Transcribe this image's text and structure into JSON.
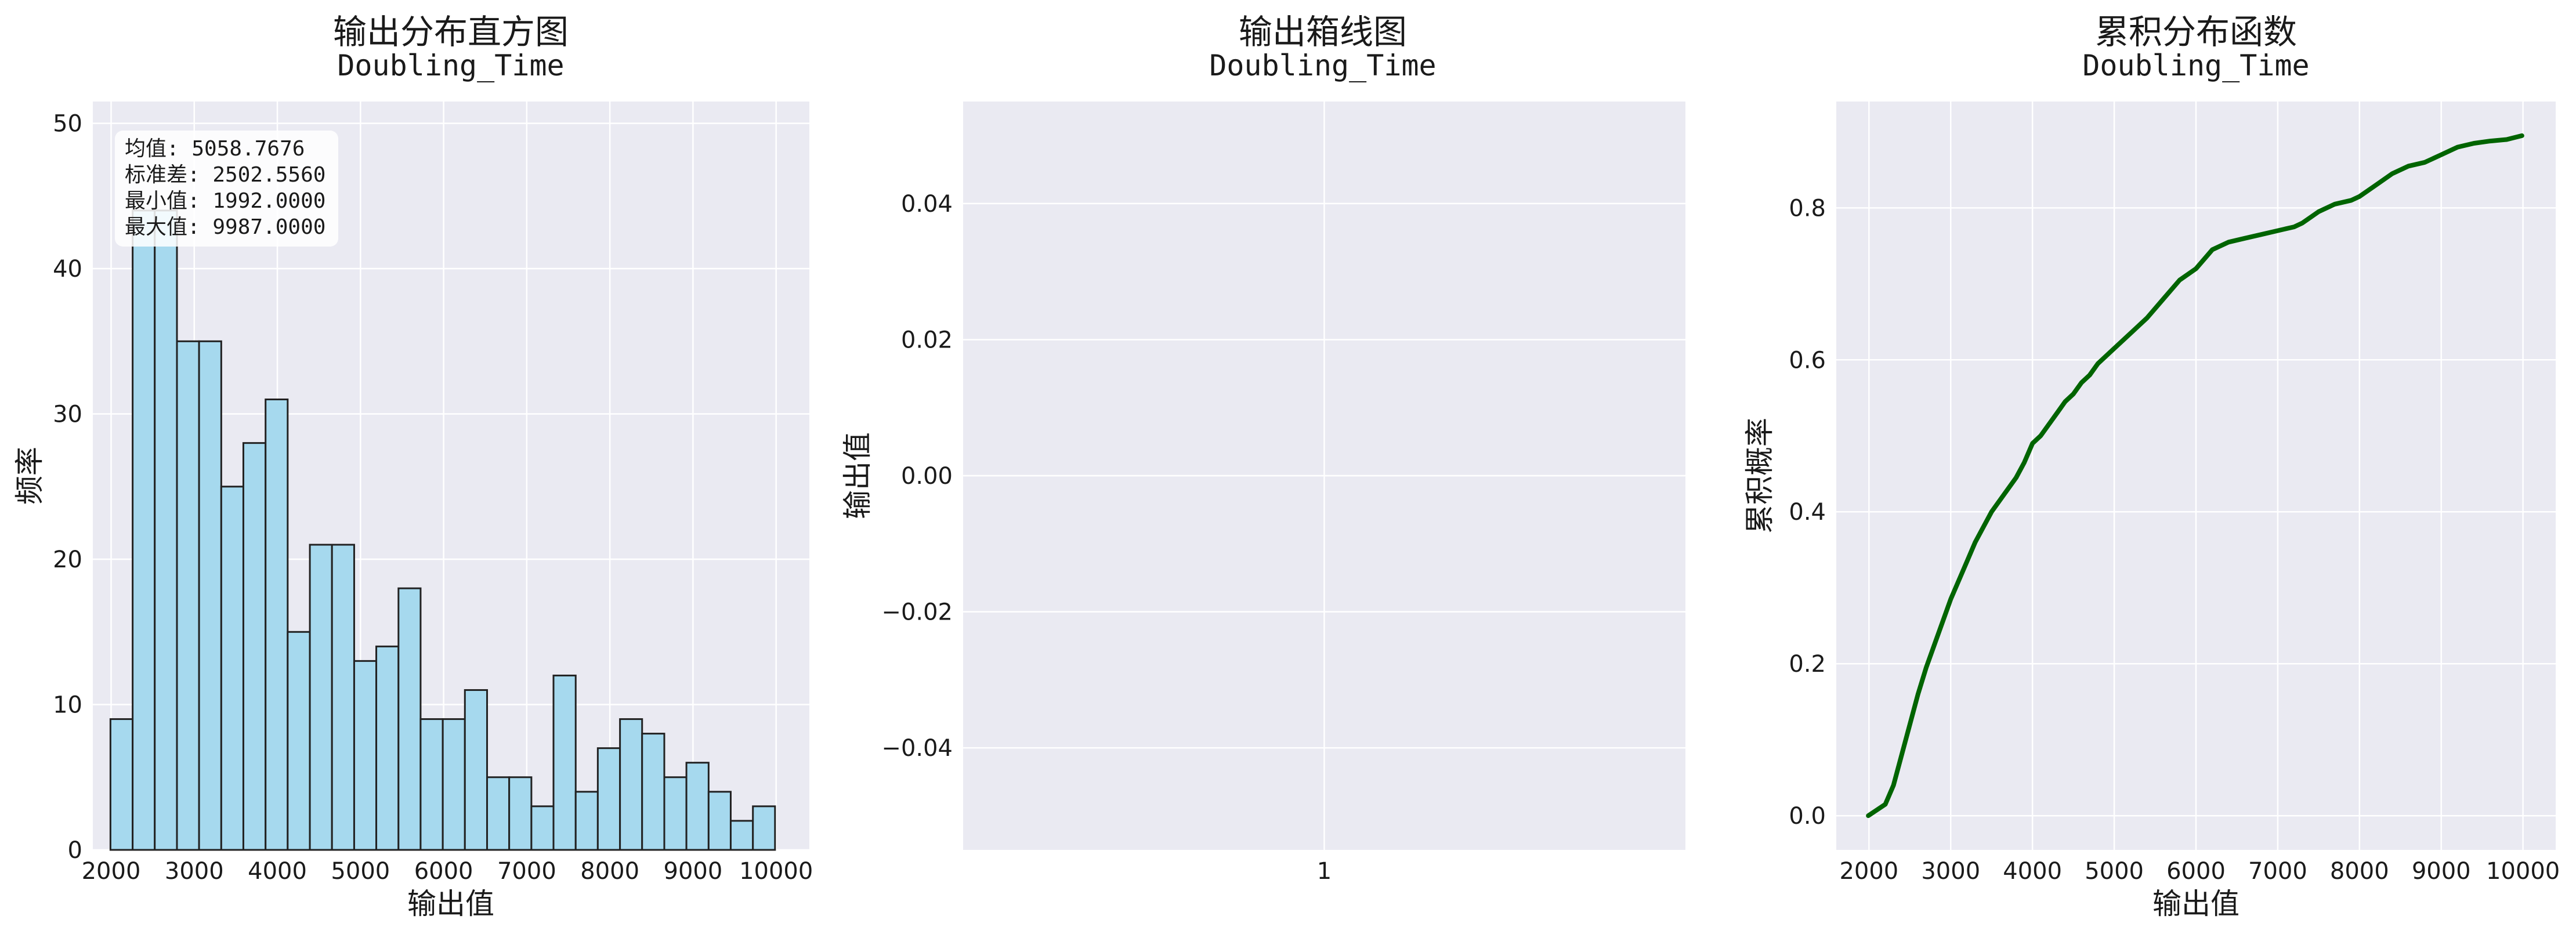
{
  "chart_data": [
    {
      "type": "bar",
      "title": "输出分布直方图",
      "subtitle": "Doubling_Time",
      "xlabel": "输出值",
      "ylabel": "频率",
      "xlim": [
        1780,
        10400
      ],
      "ylim": [
        0,
        51.5
      ],
      "xticks": [
        2000,
        3000,
        4000,
        5000,
        6000,
        7000,
        8000,
        9000,
        10000
      ],
      "yticks": [
        0,
        10,
        20,
        30,
        40,
        50
      ],
      "grid": true,
      "bin_edges": [
        1992,
        2259,
        2525,
        2792,
        3058,
        3325,
        3591,
        3858,
        4124,
        4391,
        4657,
        4924,
        5190,
        5457,
        5723,
        5990,
        6256,
        6523,
        6789,
        7056,
        7322,
        7589,
        7855,
        8122,
        8388,
        8655,
        8921,
        9188,
        9454,
        9721,
        9987
      ],
      "values": [
        9,
        44,
        44,
        35,
        35,
        25,
        28,
        31,
        15,
        21,
        21,
        13,
        14,
        18,
        9,
        9,
        11,
        5,
        5,
        3,
        12,
        4,
        7,
        9,
        8,
        5,
        6,
        4,
        2,
        3
      ],
      "stats": [
        "均值: 5058.7676",
        "标准差: 2502.5560",
        "最小值: 1992.0000",
        "最大值: 9987.0000"
      ],
      "bar_color": "#a6d9ee"
    },
    {
      "type": "box",
      "title": "输出箱线图",
      "subtitle": "Doubling_Time",
      "xlabel": "",
      "ylabel": "输出值",
      "ylim": [
        -0.055,
        0.055
      ],
      "yticks": [
        0.04,
        0.02,
        0.0,
        -0.02,
        -0.04
      ],
      "ytick_labels": [
        "0.04",
        "0.02",
        "0.00",
        "−0.02",
        "−0.04"
      ],
      "xticks": [
        "1"
      ],
      "grid": true
    },
    {
      "type": "line",
      "title": "累积分布函数",
      "subtitle": "Doubling_Time",
      "xlabel": "输出值",
      "ylabel": "累积概率",
      "xlim": [
        1600,
        10400
      ],
      "ylim": [
        -0.045,
        0.94
      ],
      "xticks": [
        2000,
        3000,
        4000,
        5000,
        6000,
        7000,
        8000,
        9000,
        10000
      ],
      "yticks": [
        0.0,
        0.2,
        0.4,
        0.6,
        0.8
      ],
      "ytick_labels": [
        "0.0",
        "0.2",
        "0.4",
        "0.6",
        "0.8"
      ],
      "grid": true,
      "line_color": "#006400",
      "x": [
        1992,
        2200,
        2300,
        2400,
        2500,
        2600,
        2700,
        2800,
        2900,
        3000,
        3100,
        3200,
        3300,
        3400,
        3500,
        3600,
        3700,
        3800,
        3900,
        4000,
        4100,
        4200,
        4300,
        4400,
        4500,
        4600,
        4700,
        4800,
        4900,
        5000,
        5200,
        5400,
        5600,
        5800,
        6000,
        6200,
        6400,
        6600,
        6800,
        7000,
        7200,
        7300,
        7500,
        7700,
        7900,
        8000,
        8200,
        8400,
        8600,
        8800,
        9000,
        9200,
        9400,
        9600,
        9800,
        9987
      ],
      "y": [
        0.0,
        0.015,
        0.04,
        0.08,
        0.12,
        0.16,
        0.195,
        0.225,
        0.255,
        0.285,
        0.31,
        0.335,
        0.36,
        0.38,
        0.4,
        0.415,
        0.43,
        0.445,
        0.465,
        0.49,
        0.5,
        0.515,
        0.53,
        0.545,
        0.555,
        0.57,
        0.58,
        0.595,
        0.605,
        0.615,
        0.635,
        0.655,
        0.68,
        0.705,
        0.72,
        0.745,
        0.755,
        0.76,
        0.765,
        0.77,
        0.775,
        0.78,
        0.795,
        0.805,
        0.81,
        0.815,
        0.83,
        0.845,
        0.855,
        0.86,
        0.87,
        0.88,
        0.885,
        0.888,
        0.89,
        0.895
      ]
    }
  ]
}
